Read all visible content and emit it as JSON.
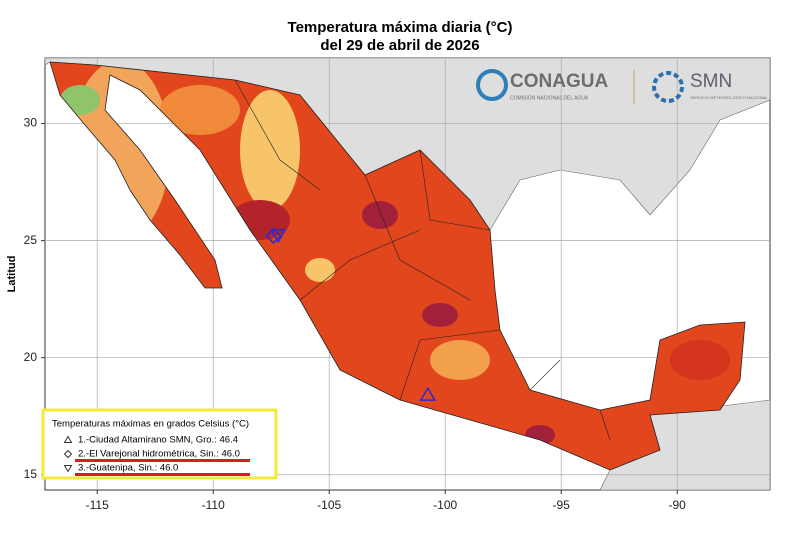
{
  "title": "Temperatura máxima diaria (°C)",
  "subtitle": "del 29 de abril de 2026",
  "logos": {
    "conagua": "CONAGUA",
    "conagua_sub": "COMISIÓN NACIONAL DEL AGUA",
    "smn": "SMN",
    "smn_sub": "SERVICIO METEOROLÓGICO NACIONAL"
  },
  "map": {
    "ylabel": "Latitud",
    "xlim": [
      -117.25,
      -86
    ],
    "ylim": [
      14.35,
      32.8
    ],
    "xticks": [
      -115,
      -110,
      -105,
      -100,
      -95,
      -90
    ],
    "yticks": [
      15,
      20,
      25,
      30
    ],
    "grid": true
  },
  "legend": {
    "title": "Temperaturas máximas en grados Celsius (°C)",
    "entries": [
      "1.-Ciudad Altamirano SMN, Gro.: 46.4",
      "2.-El Varejonal hidrométrica, Sin.: 46.0",
      "3.-Guatenipa, Sin.: 46.0"
    ]
  },
  "stations": [
    {
      "symbol": "triangle-up",
      "lon": -100.75,
      "lat": 18.4
    },
    {
      "symbol": "diamond",
      "lon": -107.4,
      "lat": 25.2
    },
    {
      "symbol": "triangle-down",
      "lon": -107.2,
      "lat": 25.25
    }
  ]
}
